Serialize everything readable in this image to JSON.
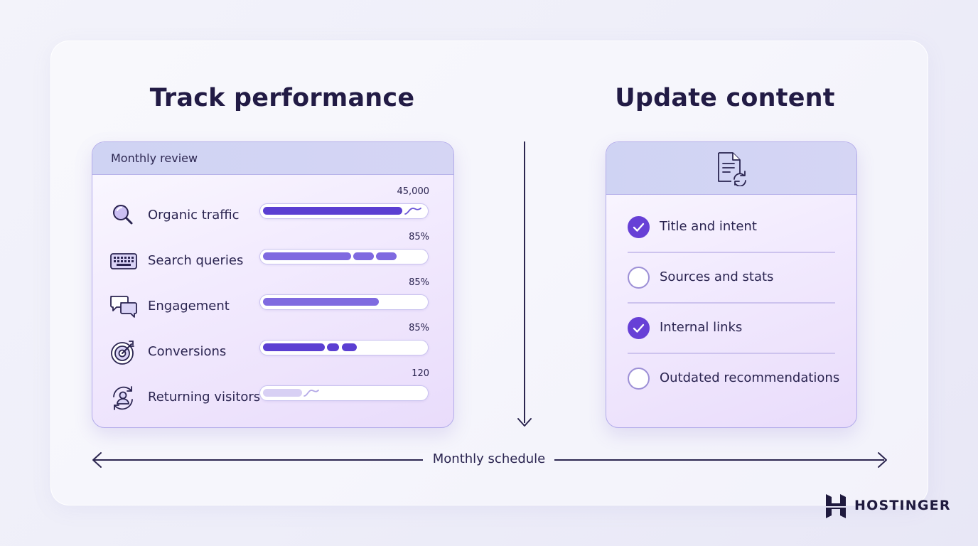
{
  "left_title": "Track performance",
  "right_title": "Update content",
  "review_card": {
    "header": "Monthly review",
    "metrics": [
      {
        "label": "Organic traffic",
        "value": "45,000",
        "icon": "magnifier-icon"
      },
      {
        "label": "Search queries",
        "value": "85%",
        "icon": "keyboard-icon"
      },
      {
        "label": "Engagement",
        "value": "85%",
        "icon": "chat-bubbles-icon"
      },
      {
        "label": "Conversions",
        "value": "85%",
        "icon": "target-icon"
      },
      {
        "label": "Returning visitors",
        "value": "120",
        "icon": "returning-user-icon"
      }
    ]
  },
  "update_card": {
    "icon": "document-refresh-icon",
    "items": [
      {
        "label": "Title and intent",
        "checked": true
      },
      {
        "label": "Sources and stats",
        "checked": false
      },
      {
        "label": "Internal links",
        "checked": true
      },
      {
        "label": "Outdated recommendations",
        "checked": false
      }
    ]
  },
  "timeline_label": "Monthly schedule",
  "brand": {
    "name": "HOSTINGER",
    "icon": "hostinger-logo-icon"
  },
  "colors": {
    "accent": "#6740d6",
    "bar_fill": "#7f6ae0",
    "bar_fill_light": "#d8d0f4",
    "text": "#221b45",
    "card_border": "#b3acea"
  }
}
